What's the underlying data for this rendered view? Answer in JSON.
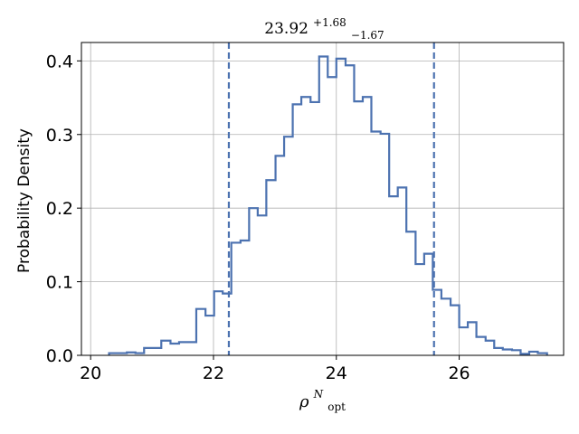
{
  "chart_data": {
    "type": "step-histogram",
    "title": {
      "value": "23.92",
      "sup": "+1.68",
      "sub": "−1.67"
    },
    "xlabel": {
      "base": "ρ",
      "sup": "N",
      "sub": "opt"
    },
    "ylabel": "Probability Density",
    "xlim": [
      19.85,
      27.7
    ],
    "ylim": [
      0.0,
      0.425
    ],
    "xticks": [
      20,
      22,
      24,
      26
    ],
    "yticks": [
      0.0,
      0.1,
      0.2,
      0.3,
      0.4
    ],
    "xtick_labels": [
      "20",
      "22",
      "24",
      "26"
    ],
    "ytick_labels": [
      "0.0",
      "0.1",
      "0.2",
      "0.3",
      "0.4"
    ],
    "grid": true,
    "line_color": "#4c72b0",
    "series": [
      {
        "bin_edges": [
          20.3,
          20.44,
          20.59,
          20.73,
          20.87,
          21.01,
          21.15,
          21.3,
          21.44,
          21.58,
          21.72,
          21.87,
          22.01,
          22.15,
          22.29,
          22.44,
          22.58,
          22.72,
          22.86,
          23.01,
          23.15,
          23.29,
          23.43,
          23.58,
          23.72,
          23.86,
          24.0,
          24.15,
          24.29,
          24.43,
          24.57,
          24.72,
          24.86,
          25.0,
          25.14,
          25.29,
          25.43,
          25.57,
          25.71,
          25.86,
          26.0,
          26.14,
          26.28,
          26.43,
          26.57,
          26.71,
          26.86,
          27.0,
          27.14,
          27.28,
          27.43
        ],
        "densities": [
          0.003,
          0.003,
          0.004,
          0.003,
          0.01,
          0.01,
          0.02,
          0.016,
          0.018,
          0.018,
          0.063,
          0.054,
          0.087,
          0.084,
          0.153,
          0.156,
          0.2,
          0.19,
          0.238,
          0.271,
          0.297,
          0.341,
          0.351,
          0.344,
          0.406,
          0.378,
          0.403,
          0.394,
          0.345,
          0.351,
          0.304,
          0.301,
          0.216,
          0.228,
          0.168,
          0.124,
          0.138,
          0.089,
          0.077,
          0.068,
          0.038,
          0.045,
          0.025,
          0.02,
          0.01,
          0.008,
          0.007,
          0.002,
          0.005,
          0.003
        ]
      }
    ],
    "vlines": [
      22.25,
      25.59
    ],
    "vline_style": "dashed"
  }
}
